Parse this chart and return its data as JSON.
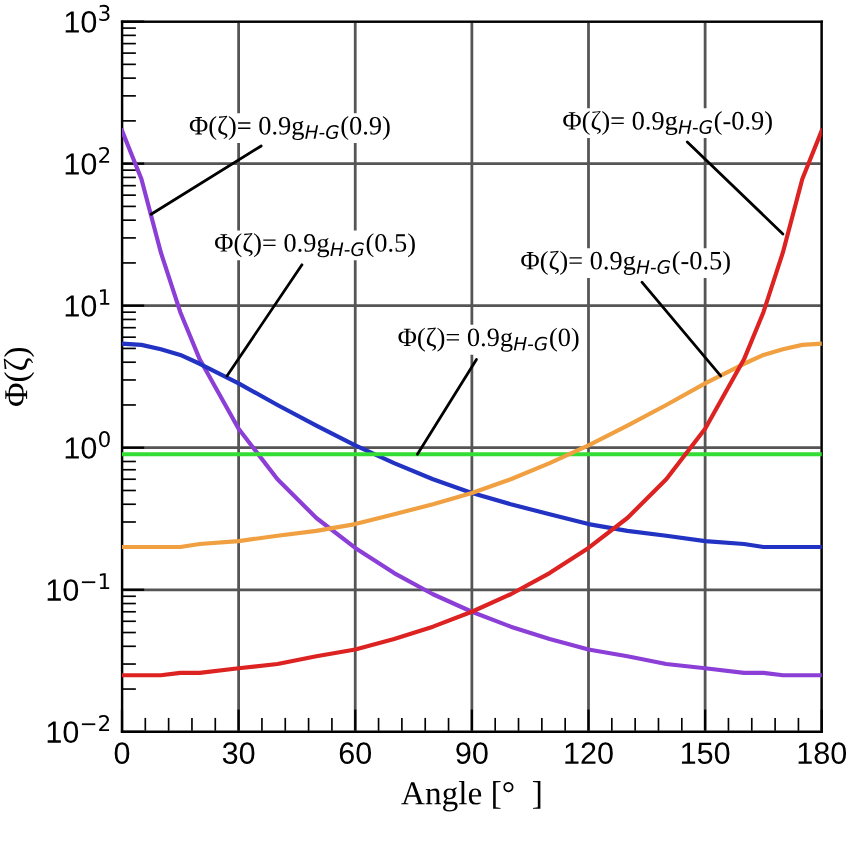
{
  "chart_data": {
    "type": "line",
    "xlabel": "Angle [°  ]",
    "ylabel": "Φ(ζ)",
    "log": "y",
    "grid": true,
    "marker": "none",
    "line_style": "solid",
    "x": [
      0,
      5,
      10,
      15,
      20,
      30,
      40,
      50,
      60,
      70,
      80,
      90,
      100,
      110,
      120,
      130,
      140,
      150,
      160,
      165,
      170,
      175,
      180
    ],
    "series": [
      {
        "color": "#8c3fd6",
        "values": [
          171,
          78,
          23.7,
          9.0,
          4.19,
          1.36,
          0.6,
          0.32,
          0.197,
          0.131,
          0.093,
          0.07,
          0.055,
          0.045,
          0.038,
          0.034,
          0.03,
          0.028,
          0.026,
          0.026,
          0.025,
          0.025,
          0.025
        ]
      },
      {
        "color": "#2233c4",
        "values": [
          5.4,
          5.3,
          4.94,
          4.5,
          3.9,
          2.84,
          2.0,
          1.43,
          1.04,
          0.78,
          0.6,
          0.48,
          0.4,
          0.34,
          0.29,
          0.26,
          0.24,
          0.22,
          0.21,
          0.2,
          0.2,
          0.2,
          0.2
        ]
      },
      {
        "color": "#33dd33",
        "values": [
          0.9,
          0.9,
          0.9,
          0.9,
          0.9,
          0.9,
          0.9,
          0.9,
          0.9,
          0.9,
          0.9,
          0.9,
          0.9,
          0.9,
          0.9,
          0.9,
          0.9,
          0.9,
          0.9,
          0.9,
          0.9,
          0.9,
          0.9
        ]
      },
      {
        "color": "#f0a040",
        "values": [
          0.2,
          0.2,
          0.2,
          0.2,
          0.21,
          0.22,
          0.24,
          0.26,
          0.29,
          0.34,
          0.4,
          0.48,
          0.6,
          0.78,
          1.04,
          1.43,
          2.0,
          2.84,
          3.9,
          4.5,
          4.94,
          5.3,
          5.4
        ]
      },
      {
        "color": "#dd2222",
        "values": [
          0.025,
          0.025,
          0.025,
          0.026,
          0.026,
          0.028,
          0.03,
          0.034,
          0.038,
          0.045,
          0.055,
          0.07,
          0.093,
          0.131,
          0.197,
          0.32,
          0.6,
          1.36,
          4.19,
          9.0,
          23.7,
          78,
          171
        ]
      }
    ],
    "xlim": [
      0,
      180
    ],
    "xticks": [
      0,
      30,
      60,
      90,
      120,
      150,
      180
    ],
    "ylim": [
      0.01,
      1000
    ],
    "yticks": [
      {
        "value": 0.01,
        "label": "10$^{−2}$"
      },
      {
        "value": 0.1,
        "label": "10$^{−1}$"
      },
      {
        "value": 1,
        "label": "10$^{0}$"
      },
      {
        "value": 10,
        "label": "10$^{1}$"
      },
      {
        "value": 100,
        "label": "10$^{2}$"
      },
      {
        "value": 1000,
        "label": "10$^{3}$"
      }
    ],
    "annotations": [
      {
        "text": "Φ(ζ)= 0.9g$_{H-G}$(0.9)",
        "x": 7.5,
        "y": 44
      },
      {
        "text": "Φ(ζ)= 0.9g$_{H-G}$(0.5)",
        "x": 27,
        "y": 3.2
      },
      {
        "text": "Φ(ζ)= 0.9g$_{H-G}$(0)",
        "x": 76,
        "y": 0.9
      },
      {
        "text": "Φ(ζ)= 0.9g$_{H-G}$(-0.5)",
        "x": 154,
        "y": 3.2
      },
      {
        "text": "Φ(ζ)= 0.9g$_{H-G}$(-0.9)",
        "x": 170,
        "y": 32
      }
    ]
  }
}
